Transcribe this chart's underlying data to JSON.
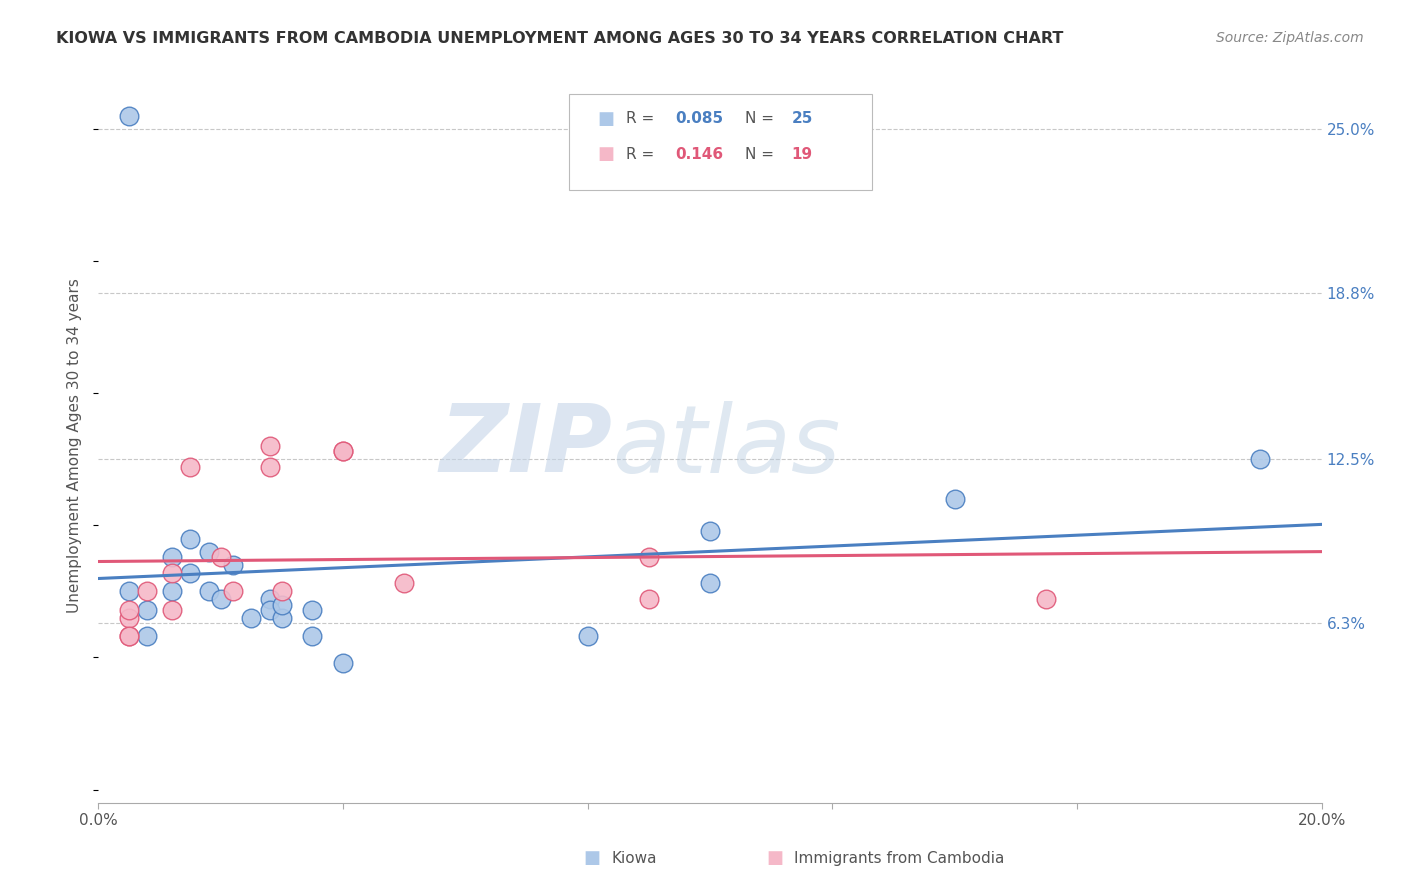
{
  "title": "KIOWA VS IMMIGRANTS FROM CAMBODIA UNEMPLOYMENT AMONG AGES 30 TO 34 YEARS CORRELATION CHART",
  "source": "Source: ZipAtlas.com",
  "ylabel": "Unemployment Among Ages 30 to 34 years",
  "xlim": [
    0.0,
    0.2
  ],
  "ylim": [
    -0.005,
    0.265
  ],
  "xticks": [
    0.0,
    0.04,
    0.08,
    0.12,
    0.16,
    0.2
  ],
  "xticklabels": [
    "0.0%",
    "",
    "",
    "",
    "",
    "20.0%"
  ],
  "right_yticks": [
    0.063,
    0.125,
    0.188,
    0.25
  ],
  "right_yticklabels": [
    "6.3%",
    "12.5%",
    "18.8%",
    "25.0%"
  ],
  "kiowa_R": 0.085,
  "kiowa_N": 25,
  "cambodia_R": 0.146,
  "cambodia_N": 19,
  "kiowa_color": "#adc8e8",
  "cambodia_color": "#f5b8c8",
  "line_kiowa_color": "#4a7fc1",
  "line_cambodia_color": "#e05878",
  "watermark_zip": "ZIP",
  "watermark_atlas": "atlas",
  "kiowa_x": [
    0.005,
    0.008,
    0.008,
    0.012,
    0.012,
    0.015,
    0.015,
    0.018,
    0.018,
    0.02,
    0.022,
    0.025,
    0.028,
    0.028,
    0.03,
    0.03,
    0.035,
    0.035,
    0.04,
    0.08,
    0.1,
    0.1,
    0.14,
    0.19,
    0.005
  ],
  "kiowa_y": [
    0.075,
    0.068,
    0.058,
    0.088,
    0.075,
    0.095,
    0.082,
    0.075,
    0.09,
    0.072,
    0.085,
    0.065,
    0.072,
    0.068,
    0.065,
    0.07,
    0.068,
    0.058,
    0.048,
    0.058,
    0.098,
    0.078,
    0.11,
    0.125,
    0.255
  ],
  "cambodia_x": [
    0.005,
    0.005,
    0.005,
    0.008,
    0.012,
    0.012,
    0.015,
    0.02,
    0.022,
    0.028,
    0.028,
    0.03,
    0.04,
    0.04,
    0.05,
    0.09,
    0.09,
    0.155,
    0.005
  ],
  "cambodia_y": [
    0.058,
    0.065,
    0.068,
    0.075,
    0.082,
    0.068,
    0.122,
    0.088,
    0.075,
    0.122,
    0.13,
    0.075,
    0.128,
    0.128,
    0.078,
    0.088,
    0.072,
    0.072,
    0.058
  ]
}
